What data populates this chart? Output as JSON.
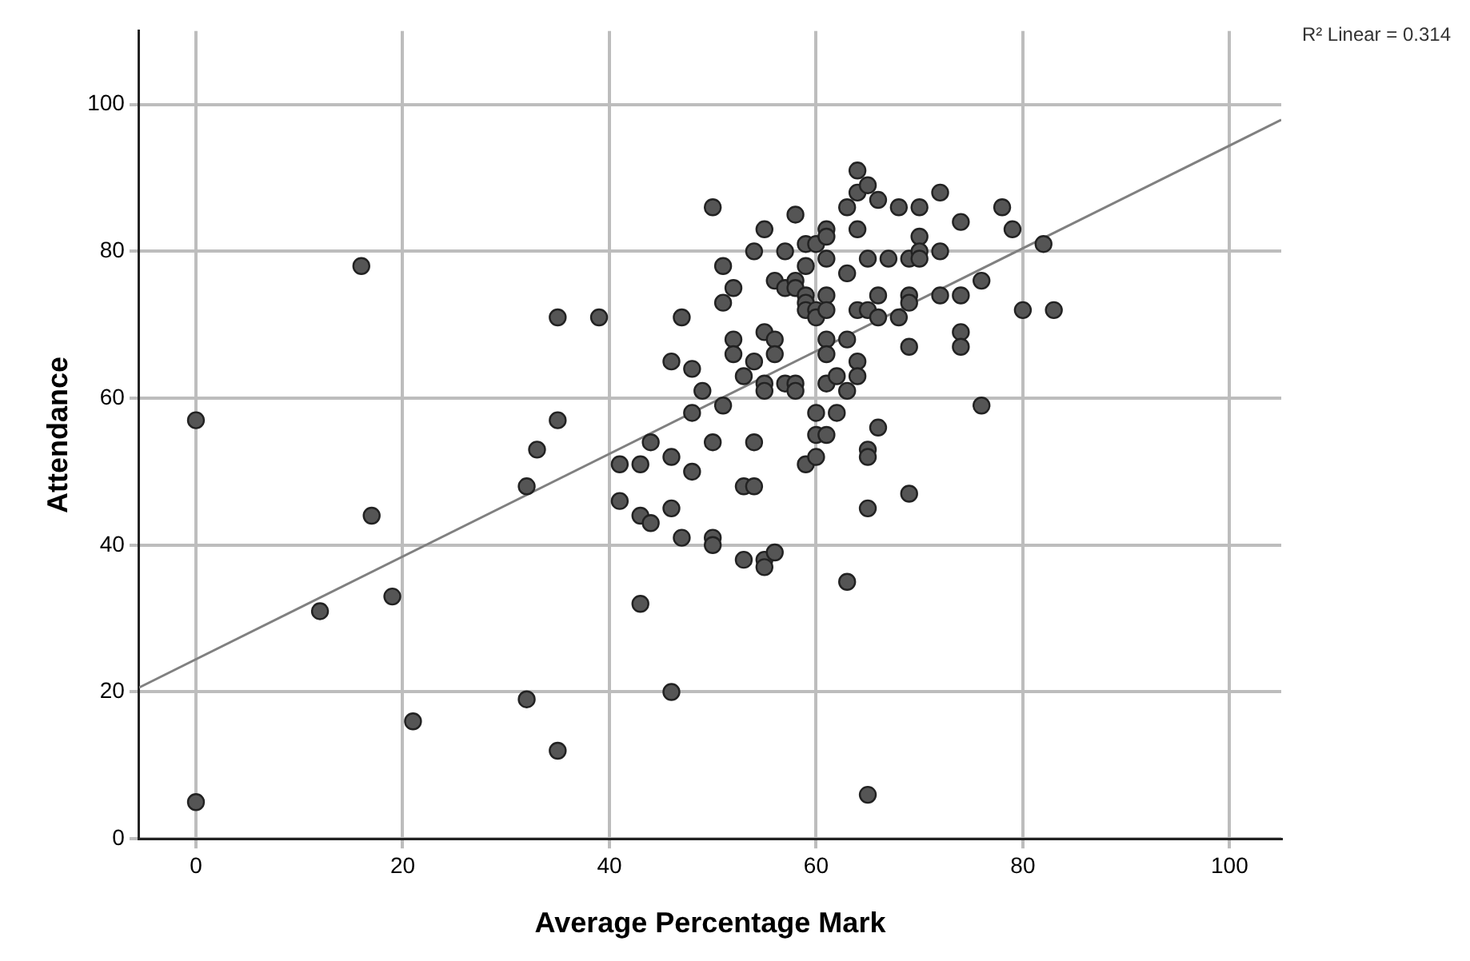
{
  "chart_data": {
    "type": "scatter",
    "xlabel": "Average Percentage Mark",
    "ylabel": "Attendance",
    "annotations": [
      "R² Linear = 0.314"
    ],
    "xlim": [
      -5.5,
      105
    ],
    "ylim": [
      0,
      110
    ],
    "xticks": [
      0,
      20,
      40,
      60,
      80,
      100
    ],
    "yticks": [
      0,
      20,
      40,
      60,
      80,
      100
    ],
    "grid": true,
    "legend": false,
    "series": [
      {
        "type": "scatter",
        "color": "#555555",
        "marker": "circle",
        "x": [
          0,
          0,
          12,
          16,
          17,
          19,
          21,
          32,
          32,
          33,
          35,
          35,
          35,
          39,
          41,
          41,
          43,
          43,
          43,
          44,
          44,
          46,
          46,
          46,
          46,
          47,
          47,
          48,
          48,
          48,
          49,
          50,
          50,
          50,
          50,
          51,
          51,
          51,
          52,
          52,
          52,
          53,
          53,
          53,
          54,
          54,
          54,
          54,
          55,
          55,
          55,
          55,
          55,
          55,
          56,
          56,
          56,
          56,
          57,
          57,
          57,
          58,
          58,
          58,
          58,
          58,
          59,
          59,
          59,
          59,
          59,
          59,
          60,
          60,
          60,
          60,
          60,
          60,
          61,
          61,
          61,
          61,
          61,
          61,
          61,
          61,
          61,
          62,
          62,
          63,
          63,
          63,
          63,
          63,
          64,
          64,
          64,
          64,
          64,
          64,
          65,
          65,
          65,
          65,
          65,
          65,
          65,
          66,
          66,
          66,
          66,
          67,
          68,
          68,
          69,
          69,
          69,
          69,
          69,
          70,
          70,
          70,
          70,
          72,
          72,
          72,
          74,
          74,
          74,
          74,
          76,
          76,
          78,
          79,
          80,
          82,
          83
        ],
        "values": [
          57,
          5,
          31,
          78,
          44,
          33,
          16,
          48,
          19,
          53,
          71,
          57,
          12,
          71,
          51,
          46,
          51,
          44,
          32,
          54,
          43,
          65,
          52,
          45,
          20,
          71,
          41,
          64,
          58,
          50,
          61,
          86,
          54,
          41,
          40,
          78,
          73,
          59,
          75,
          68,
          66,
          63,
          48,
          38,
          80,
          65,
          54,
          48,
          83,
          69,
          62,
          61,
          38,
          37,
          76,
          68,
          66,
          39,
          80,
          75,
          62,
          85,
          76,
          75,
          62,
          61,
          81,
          78,
          74,
          73,
          72,
          51,
          81,
          72,
          71,
          58,
          55,
          52,
          83,
          82,
          79,
          74,
          72,
          68,
          66,
          62,
          55,
          63,
          58,
          86,
          77,
          68,
          61,
          35,
          91,
          88,
          83,
          72,
          65,
          63,
          89,
          79,
          72,
          53,
          52,
          45,
          6,
          87,
          74,
          71,
          56,
          79,
          86,
          71,
          79,
          74,
          73,
          67,
          47,
          86,
          82,
          80,
          79,
          88,
          80,
          74,
          84,
          74,
          69,
          67,
          76,
          59,
          86,
          83,
          72,
          81,
          72
        ]
      },
      {
        "type": "line",
        "color": "#808080",
        "marker": "none",
        "x": [
          -5.5,
          105
        ],
        "values": [
          20.6,
          97.9
        ]
      }
    ]
  }
}
